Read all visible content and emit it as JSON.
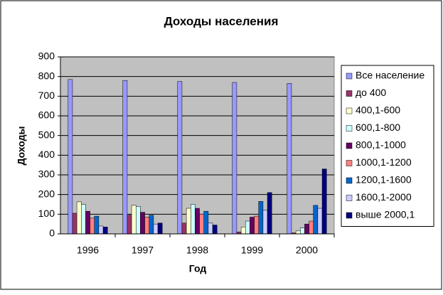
{
  "chart_data": {
    "type": "bar",
    "title": "Доходы населения",
    "x_label": "Год",
    "y_label": "Доходы",
    "categories": [
      "1996",
      "1997",
      "1998",
      "1999",
      "2000"
    ],
    "ylim": [
      0,
      900
    ],
    "yticks": [
      0,
      100,
      200,
      300,
      400,
      500,
      600,
      700,
      800,
      900
    ],
    "grid": true,
    "legend": "right",
    "series": [
      {
        "name": "Все население",
        "color": "#9999ff",
        "values": [
          785,
          780,
          775,
          770,
          765
        ]
      },
      {
        "name": "до 400",
        "color": "#993366",
        "values": [
          105,
          95,
          55,
          10,
          5
        ]
      },
      {
        "name": "400,1-600",
        "color": "#ffffcc",
        "values": [
          163,
          145,
          130,
          35,
          15
        ]
      },
      {
        "name": "600,1-800",
        "color": "#ccffff",
        "values": [
          150,
          140,
          150,
          65,
          30
        ]
      },
      {
        "name": "800,1-1000",
        "color": "#660066",
        "values": [
          115,
          110,
          130,
          85,
          50
        ]
      },
      {
        "name": "1000,1-1200",
        "color": "#ff8080",
        "values": [
          80,
          85,
          100,
          90,
          65
        ]
      },
      {
        "name": "1200,1-1600",
        "color": "#0066cc",
        "values": [
          90,
          95,
          115,
          165,
          145
        ]
      },
      {
        "name": "1600,1-2000",
        "color": "#ccccff",
        "values": [
          40,
          50,
          55,
          120,
          130
        ]
      },
      {
        "name": "выше 2000,1",
        "color": "#000080",
        "values": [
          35,
          55,
          45,
          210,
          330
        ]
      }
    ]
  }
}
